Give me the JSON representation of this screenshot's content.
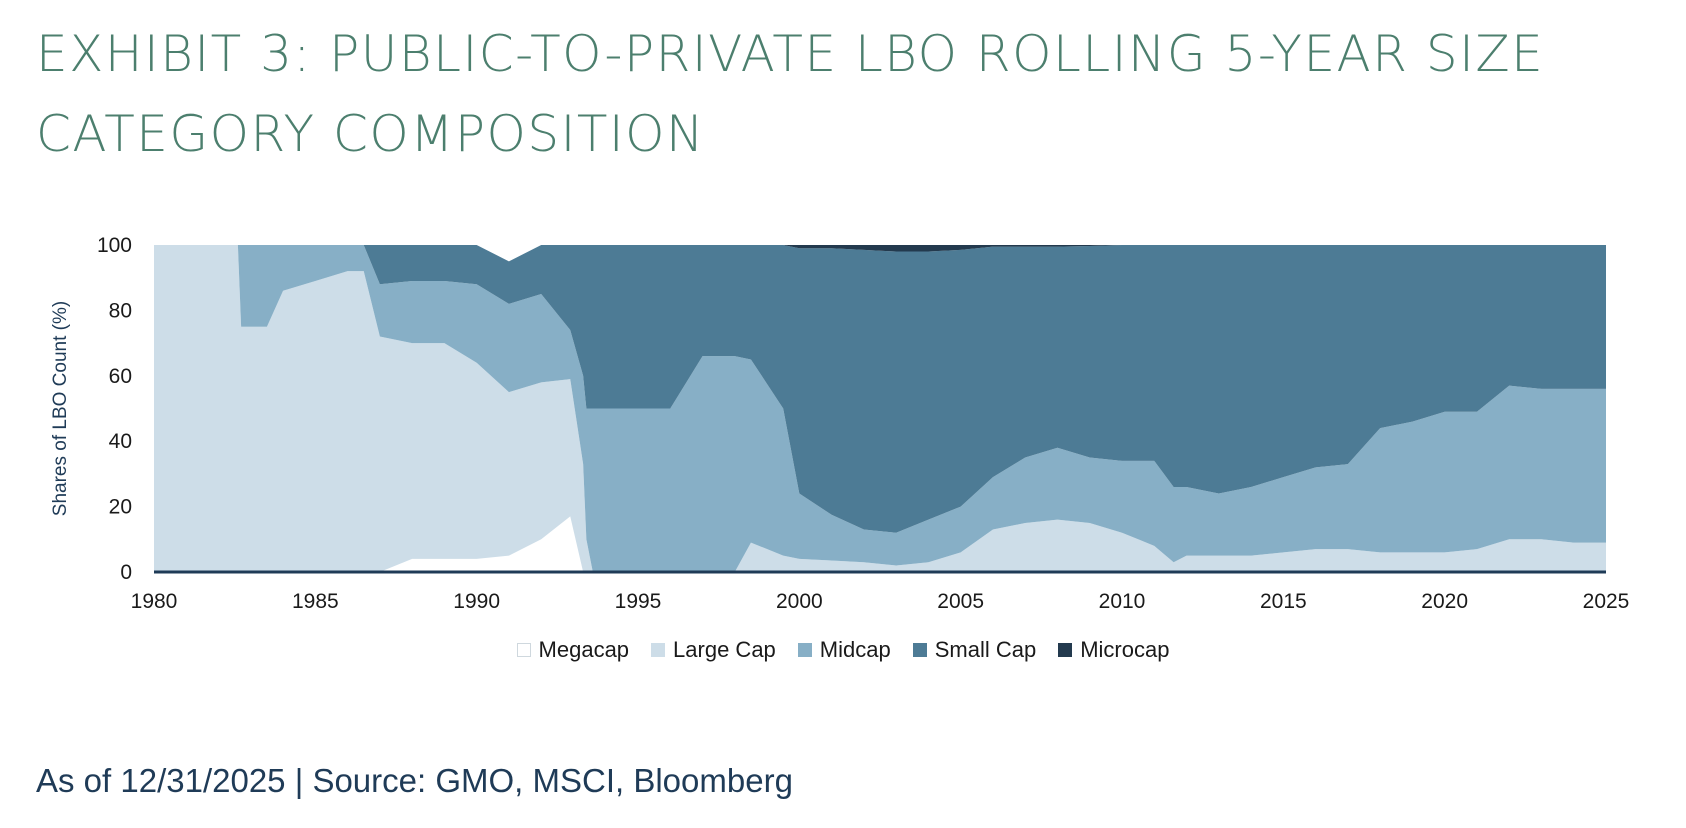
{
  "header": {
    "title_line1": "EXHIBIT 3: PUBLIC-TO-PRIVATE LBO ROLLING 5-YEAR SIZE",
    "title_line2": "CATEGORY COMPOSITION"
  },
  "footer": {
    "source": "As of 12/31/2025 | Source: GMO, MSCI, Bloomberg"
  },
  "chart_data": {
    "type": "area",
    "stacked": true,
    "title": "EXHIBIT 3: PUBLIC-TO-PRIVATE LBO ROLLING 5-YEAR SIZE CATEGORY COMPOSITION",
    "xlabel": "",
    "ylabel": "Shares of LBO Count (%)",
    "xlim": [
      1980,
      2025
    ],
    "ylim": [
      0,
      100
    ],
    "x_ticks": [
      1980,
      1985,
      1990,
      1995,
      2000,
      2005,
      2010,
      2015,
      2020,
      2025
    ],
    "y_ticks": [
      0,
      20,
      40,
      60,
      80,
      100
    ],
    "legend_position": "bottom-center",
    "grid": false,
    "colors": {
      "Megacap": "#ffffff",
      "Large Cap": "#cddde8",
      "Midcap": "#87afc6",
      "Small Cap": "#4d7b95",
      "Microcap": "#233a4e",
      "axis": "#1f3b57",
      "ylabel": "#1f3b57"
    },
    "x": [
      1980,
      1982.6,
      1982.7,
      1983.5,
      1984,
      1985,
      1986,
      1986.5,
      1987,
      1988,
      1989,
      1990,
      1991,
      1992,
      1992.9,
      1993.3,
      1993.4,
      1993.6,
      1995,
      1996,
      1997,
      1998,
      1998.5,
      1999.5,
      2000,
      2001,
      2002,
      2003,
      2004,
      2005,
      2006,
      2007,
      2008,
      2009,
      2010,
      2011,
      2011.6,
      2012,
      2013,
      2014,
      2015,
      2016,
      2017,
      2018,
      2019,
      2020,
      2021,
      2022,
      2023,
      2024,
      2025
    ],
    "series": [
      {
        "name": "Megacap",
        "values": [
          0,
          0,
          0,
          0,
          0,
          0,
          0,
          0,
          0,
          4,
          4,
          4,
          5,
          10,
          17,
          0,
          0,
          0,
          0,
          0,
          0,
          0,
          0,
          0,
          0,
          0,
          0,
          0,
          0,
          0,
          0,
          0,
          0,
          0,
          0,
          0,
          0,
          0,
          0,
          0,
          0,
          0,
          0,
          0,
          0,
          0,
          0,
          0,
          0,
          0,
          0
        ]
      },
      {
        "name": "Large Cap",
        "values": [
          100,
          100,
          75,
          75,
          86,
          89,
          92,
          92,
          72,
          66,
          66,
          60,
          50,
          48,
          42,
          33,
          10,
          0,
          0,
          0,
          0,
          0,
          9,
          5,
          4,
          3.5,
          3,
          2,
          3,
          6,
          13,
          15,
          16,
          15,
          12,
          8,
          3,
          5,
          5,
          5,
          6,
          7,
          7,
          6,
          6,
          6,
          7,
          10,
          10,
          9,
          9
        ]
      },
      {
        "name": "Midcap",
        "values": [
          0,
          0,
          25,
          25,
          14,
          11,
          8,
          8,
          16,
          19,
          19,
          24,
          27,
          27,
          15,
          27,
          40,
          50,
          50,
          50,
          66,
          66,
          56,
          45,
          20,
          14,
          10,
          10,
          13,
          14,
          16,
          20,
          22,
          20,
          22,
          26,
          23,
          21,
          19,
          21,
          23,
          25,
          26,
          38,
          40,
          43,
          42,
          47,
          46,
          47,
          47
        ]
      },
      {
        "name": "Small Cap",
        "values": [
          0,
          0,
          0,
          0,
          0,
          0,
          0,
          0,
          12,
          11,
          11,
          12,
          13,
          15,
          26,
          40,
          50,
          50,
          50,
          50,
          34,
          34,
          35,
          50,
          75,
          81.5,
          85.5,
          86,
          82,
          78.5,
          70.5,
          64.5,
          61.5,
          64.7,
          66,
          66,
          74,
          74,
          76,
          74,
          71,
          68,
          67,
          56,
          54,
          51,
          51,
          43,
          44,
          44,
          44
        ]
      },
      {
        "name": "Microcap",
        "values": [
          0,
          0,
          0,
          0,
          0,
          0,
          0,
          0,
          0,
          0,
          0,
          0,
          0,
          0,
          0,
          0,
          0,
          0,
          0,
          0,
          0,
          0,
          0,
          0,
          1,
          1,
          1.5,
          2,
          2,
          1.5,
          0.5,
          0.5,
          0.5,
          0.3,
          0,
          0,
          0,
          0,
          0,
          0,
          0,
          0,
          0,
          0,
          0,
          0,
          0,
          0,
          0,
          0,
          0
        ]
      }
    ]
  }
}
